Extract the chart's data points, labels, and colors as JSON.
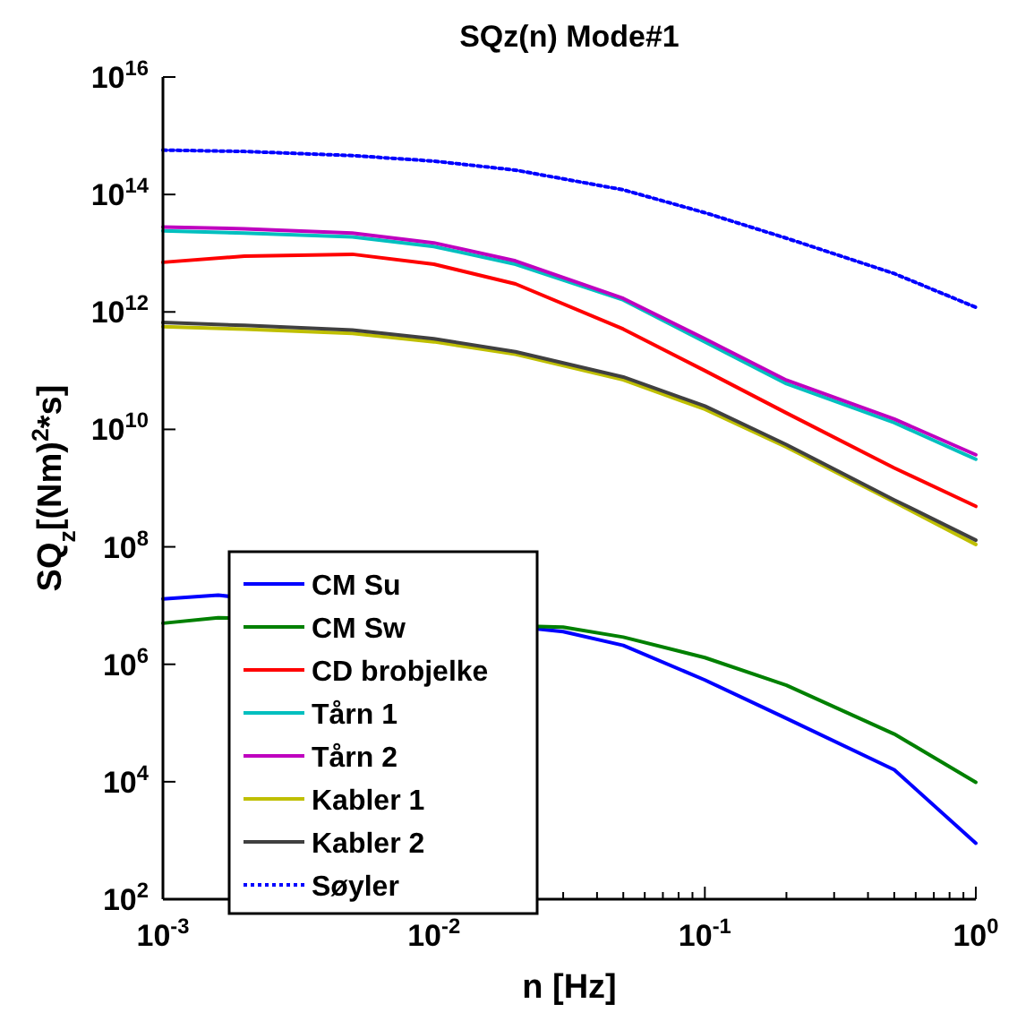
{
  "chart_data": {
    "type": "line",
    "title": "SQz(n) Mode#1",
    "xlabel": "n [Hz]",
    "ylabel": "SQ$_{z}$[(Nm)$^{2}$*s]",
    "log": "xy",
    "legend": "bottom left",
    "line_style": "solid",
    "marker": "none",
    "x": [
      0.001,
      0.002,
      0.005,
      0.01,
      0.02,
      0.05,
      0.1,
      0.2,
      0.5,
      1
    ],
    "xlim": [
      0.001,
      1
    ],
    "xticks": [
      {
        "value": 0.001,
        "label": "10$^{-3}$"
      },
      {
        "value": 0.01,
        "label": "10$^{-2}$"
      },
      {
        "value": 0.1,
        "label": "10$^{-1}$"
      },
      {
        "value": 1,
        "label": "10$^{0}$"
      }
    ],
    "ylim": [
      100,
      1e+16
    ],
    "yticks": [
      {
        "value": 100,
        "label": "10$^{2}$"
      },
      {
        "value": 10000,
        "label": "10$^{4}$"
      },
      {
        "value": 1000000,
        "label": "10$^{6}$"
      },
      {
        "value": 100000000,
        "label": "10$^{8}$"
      },
      {
        "value": 10000000000,
        "label": "10$^{10}$"
      },
      {
        "value": 1000000000000,
        "label": "10$^{12}$"
      },
      {
        "value": 100000000000000,
        "label": "10$^{14}$"
      },
      {
        "value": 10000000000000000,
        "label": "10$^{16}$"
      }
    ],
    "series": [
      {
        "name": "CM Su",
        "color": "#0000ff",
        "x": [
          0.001,
          0.0016,
          0.03,
          0.05,
          0.1,
          0.2,
          0.5,
          1
        ],
        "values": [
          13000000.0,
          15000000.0,
          3600000.0,
          2100000.0,
          540000.0,
          120000.0,
          16000.0,
          900
        ]
      },
      {
        "name": "CM Sw",
        "color": "#008000",
        "x": [
          0.001,
          0.0016,
          0.03,
          0.05,
          0.1,
          0.2,
          0.5,
          1
        ],
        "values": [
          5000000.0,
          6200000.0,
          4300000.0,
          2900000.0,
          1300000.0,
          440000.0,
          65000.0,
          9800
        ]
      },
      {
        "name": "CD brobjelke",
        "color": "#ff0000",
        "values": [
          7000000000000.0,
          8900000000000.0,
          9600000000000.0,
          6500000000000.0,
          3000000000000.0,
          510000000000.0,
          100000000000.0,
          19000000000.0,
          2200000000.0,
          490000000.0
        ]
      },
      {
        "name": "Tårn 1",
        "color": "#00bfbf",
        "values": [
          24000000000000.0,
          22000000000000.0,
          19000000000000.0,
          13000000000000.0,
          6500000000000.0,
          1600000000000.0,
          310000000000.0,
          60000000000.0,
          13000000000.0,
          3100000000.0
        ]
      },
      {
        "name": "Tårn 2",
        "color": "#bf00bf",
        "values": [
          28000000000000.0,
          26000000000000.0,
          22000000000000.0,
          15000000000000.0,
          7400000000000.0,
          1700000000000.0,
          350000000000.0,
          69000000000.0,
          15000000000.0,
          3700000000.0
        ]
      },
      {
        "name": "Kabler 1",
        "color": "#bfbf00",
        "values": [
          560000000000.0,
          510000000000.0,
          430000000000.0,
          310000000000.0,
          190000000000.0,
          70000000000.0,
          22000000000.0,
          5000000000.0,
          580000000.0,
          110000000.0
        ]
      },
      {
        "name": "Kabler 2",
        "color": "#404040",
        "values": [
          660000000000.0,
          590000000000.0,
          490000000000.0,
          350000000000.0,
          210000000000.0,
          78000000000.0,
          25000000000.0,
          5500000000.0,
          630000000.0,
          130000000.0
        ]
      },
      {
        "name": "Søyler",
        "color": "#0000ff",
        "line_style": "dotted",
        "values": [
          570000000000000.0,
          540000000000000.0,
          460000000000000.0,
          370000000000000.0,
          260000000000000.0,
          120000000000000.0,
          49000000000000.0,
          18000000000000.0,
          4500000000000.0,
          1200000000000.0
        ]
      }
    ]
  }
}
